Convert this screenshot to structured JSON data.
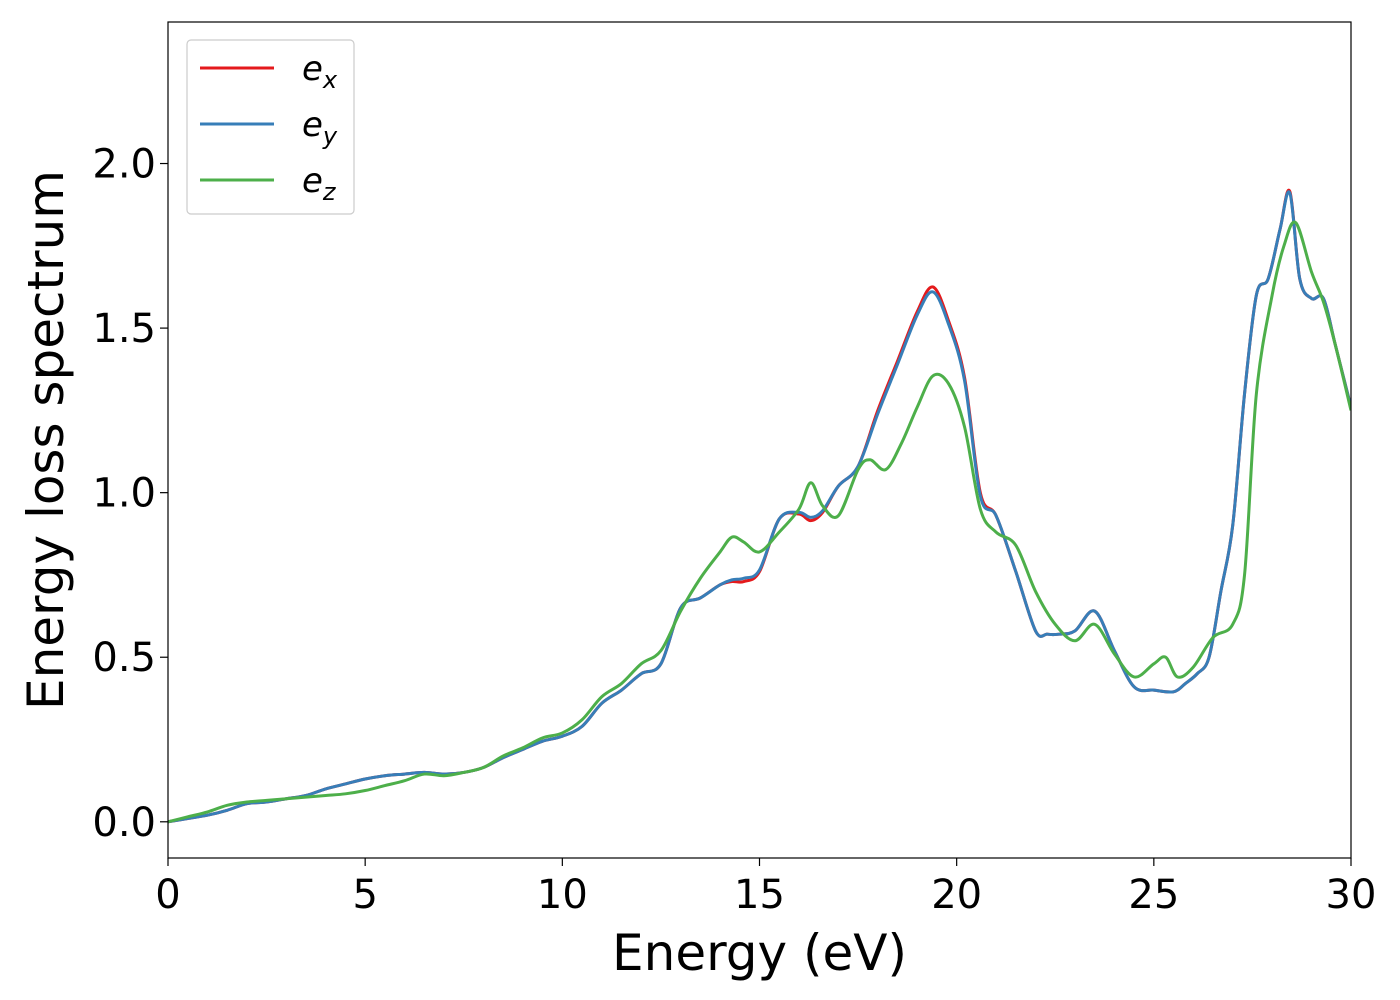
{
  "chart_data": {
    "type": "line",
    "title": "",
    "xlabel": "Energy (eV)",
    "ylabel": "Energy loss spectrum",
    "xlim": [
      0,
      30
    ],
    "ylim": [
      -0.11,
      2.43
    ],
    "xticks": [
      0,
      5,
      10,
      15,
      20,
      25,
      30
    ],
    "xtick_labels": [
      "0",
      "5",
      "10",
      "15",
      "20",
      "25",
      "30"
    ],
    "yticks": [
      0.0,
      0.5,
      1.0,
      1.5,
      2.0
    ],
    "ytick_labels": [
      "0.0",
      "0.5",
      "1.0",
      "1.5",
      "2.0"
    ],
    "grid": false,
    "legend_position": "top-left",
    "series": [
      {
        "name": "e_x",
        "legend_base": "e",
        "legend_sub": "x",
        "color": "#e41a1c",
        "x": [
          0,
          0.5,
          1,
          1.5,
          2,
          2.5,
          3,
          3.5,
          4,
          4.5,
          5,
          5.5,
          6,
          6.5,
          7,
          7.5,
          8,
          8.5,
          9,
          9.5,
          10,
          10.5,
          11,
          11.5,
          12,
          12.5,
          13,
          13.5,
          14,
          14.3,
          14.6,
          15,
          15.5,
          16,
          16.3,
          16.6,
          17,
          17.5,
          18,
          18.5,
          19,
          19.4,
          19.8,
          20.2,
          20.6,
          21,
          21.5,
          22,
          22.3,
          22.6,
          23,
          23.5,
          24,
          24.5,
          25,
          25.5,
          25.8,
          26.1,
          26.4,
          26.7,
          27,
          27.3,
          27.6,
          27.9,
          28.2,
          28.45,
          28.7,
          29,
          29.3,
          29.6,
          30
        ],
        "y": [
          0.0,
          0.01,
          0.02,
          0.035,
          0.055,
          0.06,
          0.07,
          0.08,
          0.1,
          0.115,
          0.13,
          0.14,
          0.145,
          0.15,
          0.145,
          0.15,
          0.165,
          0.195,
          0.22,
          0.245,
          0.26,
          0.29,
          0.36,
          0.4,
          0.45,
          0.48,
          0.65,
          0.68,
          0.72,
          0.73,
          0.73,
          0.76,
          0.92,
          0.935,
          0.915,
          0.94,
          1.02,
          1.08,
          1.25,
          1.4,
          1.55,
          1.625,
          1.52,
          1.35,
          1.0,
          0.93,
          0.76,
          0.58,
          0.57,
          0.57,
          0.58,
          0.64,
          0.52,
          0.41,
          0.4,
          0.395,
          0.42,
          0.45,
          0.5,
          0.7,
          0.9,
          1.3,
          1.6,
          1.65,
          1.8,
          1.915,
          1.65,
          1.59,
          1.59,
          1.45,
          1.26
        ]
      },
      {
        "name": "e_y",
        "legend_base": "e",
        "legend_sub": "y",
        "color": "#377eb8",
        "x": [
          0,
          0.5,
          1,
          1.5,
          2,
          2.5,
          3,
          3.5,
          4,
          4.5,
          5,
          5.5,
          6,
          6.5,
          7,
          7.5,
          8,
          8.5,
          9,
          9.5,
          10,
          10.5,
          11,
          11.5,
          12,
          12.5,
          13,
          13.5,
          14,
          14.3,
          14.6,
          15,
          15.5,
          16,
          16.3,
          16.6,
          17,
          17.5,
          18,
          18.5,
          19,
          19.4,
          19.8,
          20.2,
          20.6,
          21,
          21.5,
          22,
          22.3,
          22.6,
          23,
          23.5,
          24,
          24.5,
          25,
          25.5,
          25.8,
          26.1,
          26.4,
          26.7,
          27,
          27.3,
          27.6,
          27.9,
          28.2,
          28.45,
          28.7,
          29,
          29.3,
          29.6,
          30
        ],
        "y": [
          0.0,
          0.01,
          0.02,
          0.035,
          0.055,
          0.06,
          0.07,
          0.08,
          0.1,
          0.115,
          0.13,
          0.14,
          0.145,
          0.15,
          0.145,
          0.15,
          0.165,
          0.195,
          0.22,
          0.245,
          0.26,
          0.29,
          0.36,
          0.4,
          0.45,
          0.48,
          0.65,
          0.68,
          0.72,
          0.735,
          0.74,
          0.765,
          0.92,
          0.94,
          0.925,
          0.945,
          1.02,
          1.08,
          1.24,
          1.39,
          1.54,
          1.61,
          1.51,
          1.34,
          0.99,
          0.93,
          0.76,
          0.58,
          0.57,
          0.57,
          0.58,
          0.64,
          0.52,
          0.41,
          0.4,
          0.395,
          0.42,
          0.45,
          0.5,
          0.7,
          0.9,
          1.3,
          1.6,
          1.65,
          1.8,
          1.91,
          1.65,
          1.59,
          1.59,
          1.45,
          1.26
        ]
      },
      {
        "name": "e_z",
        "legend_base": "e",
        "legend_sub": "z",
        "color": "#4daf4a",
        "x": [
          0,
          0.5,
          1,
          1.5,
          2,
          2.5,
          3,
          3.5,
          4,
          4.5,
          5,
          5.5,
          6,
          6.5,
          7,
          7.5,
          8,
          8.5,
          9,
          9.5,
          10,
          10.5,
          11,
          11.5,
          12,
          12.5,
          13,
          13.5,
          14,
          14.3,
          14.6,
          15,
          15.5,
          16,
          16.3,
          16.6,
          17,
          17.5,
          17.8,
          18.2,
          18.6,
          19,
          19.4,
          19.8,
          20.2,
          20.6,
          21,
          21.5,
          22,
          22.5,
          23,
          23.5,
          24,
          24.5,
          25,
          25.3,
          25.6,
          26,
          26.5,
          27,
          27.3,
          27.6,
          28,
          28.3,
          28.6,
          29,
          29.3,
          29.6,
          30
        ],
        "y": [
          0.0,
          0.015,
          0.03,
          0.05,
          0.06,
          0.065,
          0.07,
          0.075,
          0.08,
          0.085,
          0.095,
          0.11,
          0.125,
          0.145,
          0.14,
          0.15,
          0.165,
          0.2,
          0.225,
          0.255,
          0.27,
          0.31,
          0.38,
          0.42,
          0.48,
          0.52,
          0.64,
          0.74,
          0.82,
          0.865,
          0.85,
          0.82,
          0.88,
          0.95,
          1.03,
          0.96,
          0.93,
          1.07,
          1.1,
          1.07,
          1.15,
          1.26,
          1.355,
          1.33,
          1.2,
          0.95,
          0.88,
          0.84,
          0.7,
          0.6,
          0.55,
          0.6,
          0.51,
          0.44,
          0.48,
          0.5,
          0.44,
          0.47,
          0.56,
          0.6,
          0.75,
          1.3,
          1.6,
          1.75,
          1.82,
          1.67,
          1.58,
          1.45,
          1.25
        ]
      }
    ]
  }
}
